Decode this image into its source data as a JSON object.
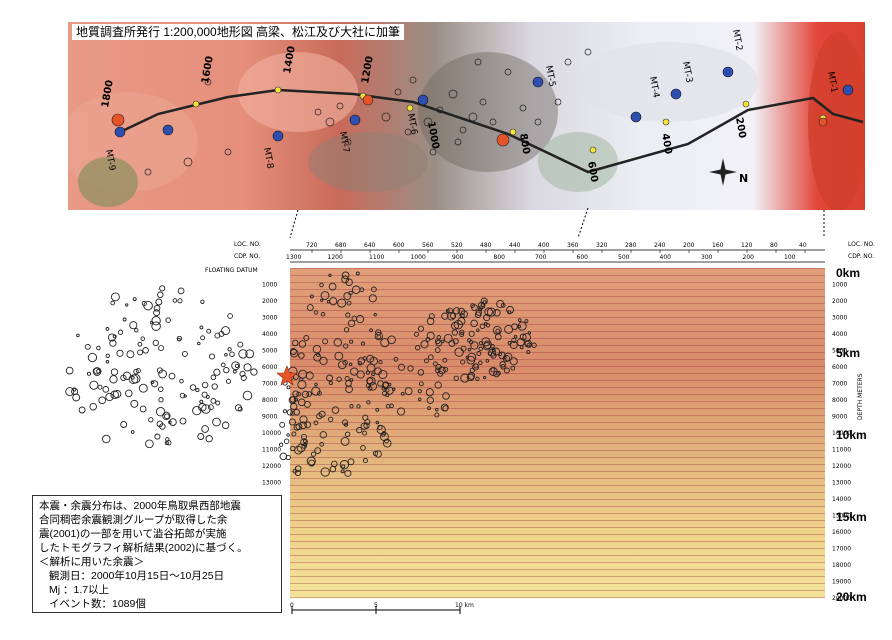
{
  "map": {
    "title": "地質調査所発行 1:200,000地形図 高梁、松江及び大社に加筆",
    "cdp_labels": [
      "1800",
      "1600",
      "1400",
      "1200",
      "1000",
      "800",
      "600",
      "400",
      "200"
    ],
    "station_labels": [
      "MT-8",
      "MT-7",
      "MT-6",
      "MT-5",
      "MT-4",
      "MT-3",
      "MT-2",
      "MT-1",
      "MT-9"
    ],
    "north_label": "N"
  },
  "section": {
    "loc_label": "LOC. NO.",
    "cdp_label": "CDP. NO.",
    "datum_label": "FLOATING DATUM",
    "loc_ticks": [
      "720",
      "680",
      "640",
      "600",
      "560",
      "520",
      "480",
      "440",
      "400",
      "360",
      "320",
      "280",
      "240",
      "200",
      "160",
      "120",
      "80",
      "40"
    ],
    "cdp_ticks": [
      "1300",
      "1200",
      "1100",
      "1000",
      "900",
      "800",
      "700",
      "600",
      "500",
      "400",
      "300",
      "200",
      "100"
    ],
    "depth_ticks": [
      "1000",
      "2000",
      "3000",
      "4000",
      "5000",
      "6000",
      "7000",
      "8000",
      "9000",
      "10000",
      "11000",
      "12000",
      "13000",
      "14000",
      "15000",
      "16000",
      "17000",
      "18000",
      "19000",
      "20000"
    ],
    "depth_km": [
      "0km",
      "5km",
      "10km",
      "15km",
      "20km"
    ],
    "depth_axis_label": "DEPTH METERS",
    "scale_labels": [
      "0",
      "5",
      "10 km"
    ]
  },
  "note": {
    "line1": "本震・余震分布は、2000年鳥取県西部地震",
    "line2": "合同稠密余震観測グループが取得した余",
    "line3": "震(2001)の一部を用いて澁谷拓郎が実施",
    "line4": "したトモグラフィ解析結果(2002)に基づく。",
    "line5": "＜解析に用いた余震＞",
    "line6": "観測日：2000年10月15日〜10月25日",
    "line7": "Mj ：1.7以上",
    "line8": "イベント数：1089個"
  },
  "colors": {
    "mainshock": "#e8542a",
    "station": "#2f4fb0",
    "cdp_point": "#f2e23a",
    "profile_line": "#222222"
  }
}
